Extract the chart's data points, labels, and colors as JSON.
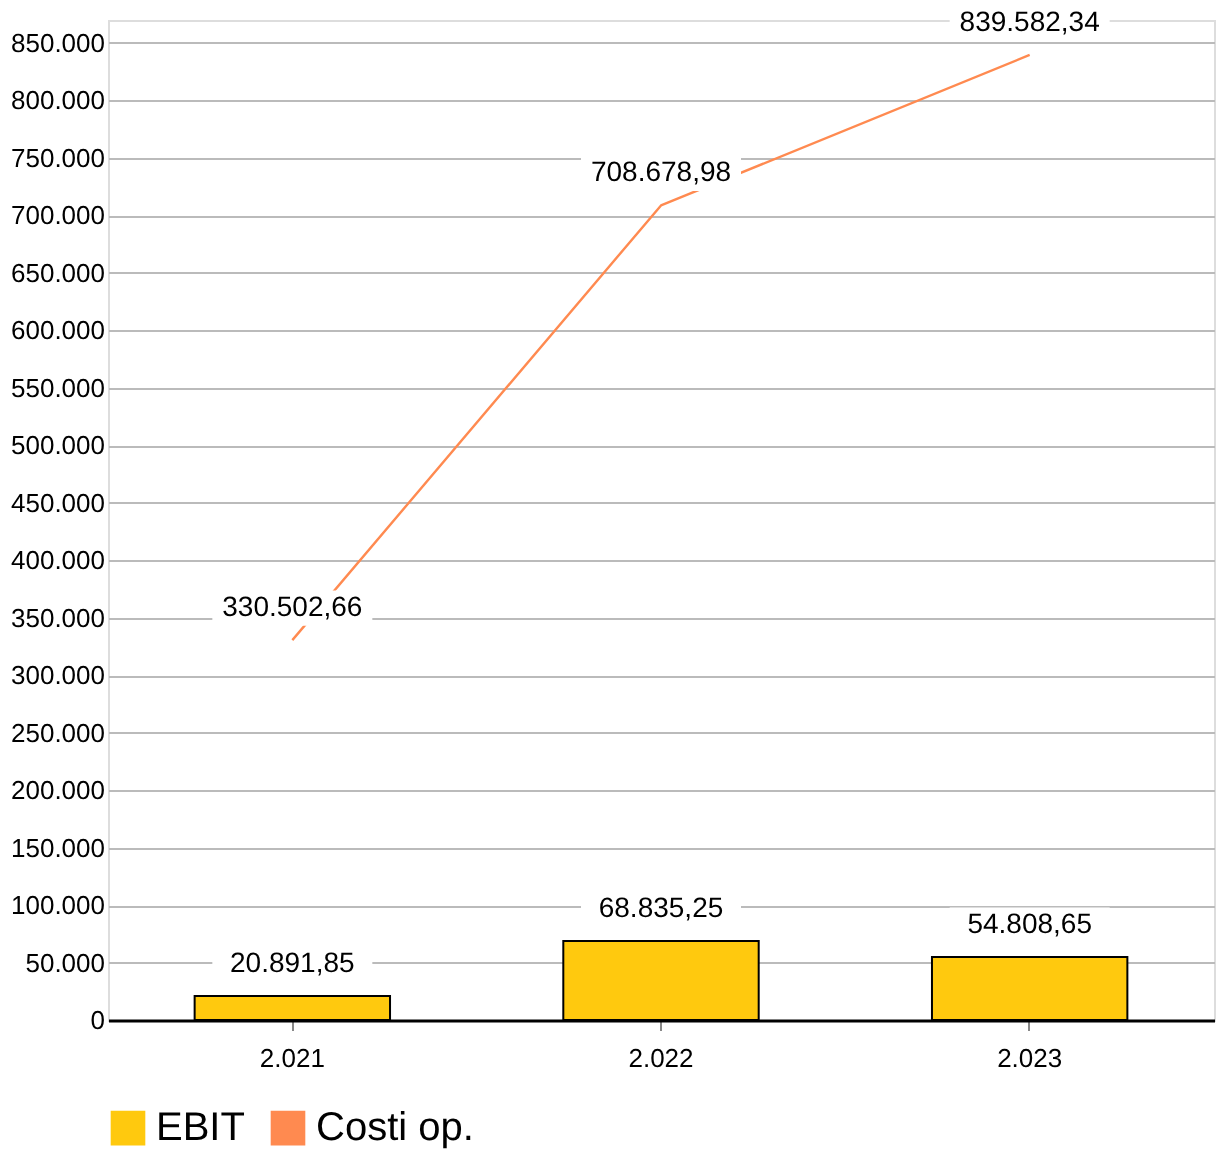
{
  "chart_data": {
    "type": "bar",
    "categories": [
      "2.021",
      "2.022",
      "2.023"
    ],
    "series": [
      {
        "name": "EBIT",
        "color": "#ffc90e",
        "values": [
          20891.85,
          68835.25,
          54808.65
        ],
        "value_labels": [
          "20.891,85",
          "68.835,25",
          "54.808,65"
        ]
      },
      {
        "name": "Costi op.",
        "type": "line",
        "color": "#ff8a50",
        "values": [
          330502.66,
          708678.98,
          839582.34
        ],
        "value_labels": [
          "330.502,66",
          "708.678,98",
          "839.582,34"
        ]
      }
    ],
    "ylim": [
      0,
      870000
    ],
    "yticks": [
      0,
      {
        "value": 50000,
        "label": "50.000"
      },
      {
        "value": 100000,
        "label": "100.000"
      },
      {
        "value": 150000,
        "label": "150.000"
      },
      {
        "value": 200000,
        "label": "200.000"
      },
      {
        "value": 250000,
        "label": "250.000"
      },
      {
        "value": 300000,
        "label": "300.000"
      },
      {
        "value": 350000,
        "label": "350.000"
      },
      {
        "value": 400000,
        "label": "400.000"
      },
      {
        "value": 450000,
        "label": "450.000"
      },
      {
        "value": 500000,
        "label": "500.000"
      },
      {
        "value": 550000,
        "label": "550.000"
      },
      {
        "value": 600000,
        "label": "600.000"
      },
      {
        "value": 650000,
        "label": "650.000"
      },
      {
        "value": 700000,
        "label": "700.000"
      },
      {
        "value": 750000,
        "label": "750.000"
      },
      {
        "value": 800000,
        "label": "800.000"
      },
      {
        "value": 850000,
        "label": "850.000"
      }
    ],
    "grid": "y",
    "legend": "bottom",
    "marker": "none"
  }
}
